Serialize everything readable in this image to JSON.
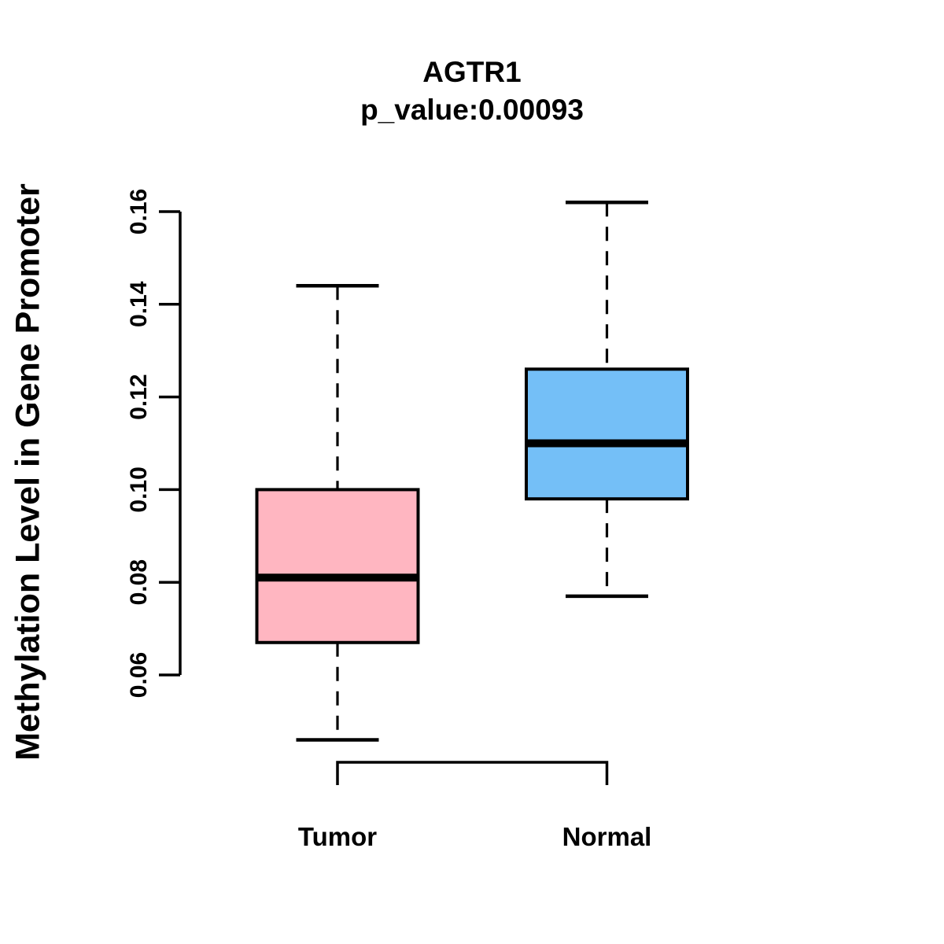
{
  "figure": {
    "title": "AGTR1",
    "subtitle": "p_value:0.00093",
    "y_axis_label": "Methylation Level in Gene Promoter"
  },
  "chart_data": {
    "type": "boxplot",
    "title": "AGTR1",
    "subtitle": "p_value:0.00093",
    "ylabel": "Methylation Level in Gene Promoter",
    "xlabel": "",
    "categories": [
      "Tumor",
      "Normal"
    ],
    "ylim": [
      0.06,
      0.16
    ],
    "y_ticks": [
      0.06,
      0.08,
      0.1,
      0.12,
      0.14,
      0.16
    ],
    "y_tick_labels": [
      "0.06",
      "0.08",
      "0.10",
      "0.12",
      "0.14",
      "0.16"
    ],
    "grid": false,
    "legend": "none",
    "series": [
      {
        "name": "Tumor",
        "color": "#FFB6C1",
        "whisker_low": 0.046,
        "q1": 0.067,
        "median": 0.081,
        "q3": 0.1,
        "whisker_high": 0.144,
        "outliers": []
      },
      {
        "name": "Normal",
        "color": "#74BFF7",
        "whisker_low": 0.077,
        "q1": 0.098,
        "median": 0.11,
        "q3": 0.126,
        "whisker_high": 0.162,
        "outliers": []
      }
    ]
  },
  "colors": {
    "background": "#FFFFFF",
    "line": "#000000",
    "tumor_box": "#FFB6C1",
    "normal_box": "#74BFF7"
  }
}
